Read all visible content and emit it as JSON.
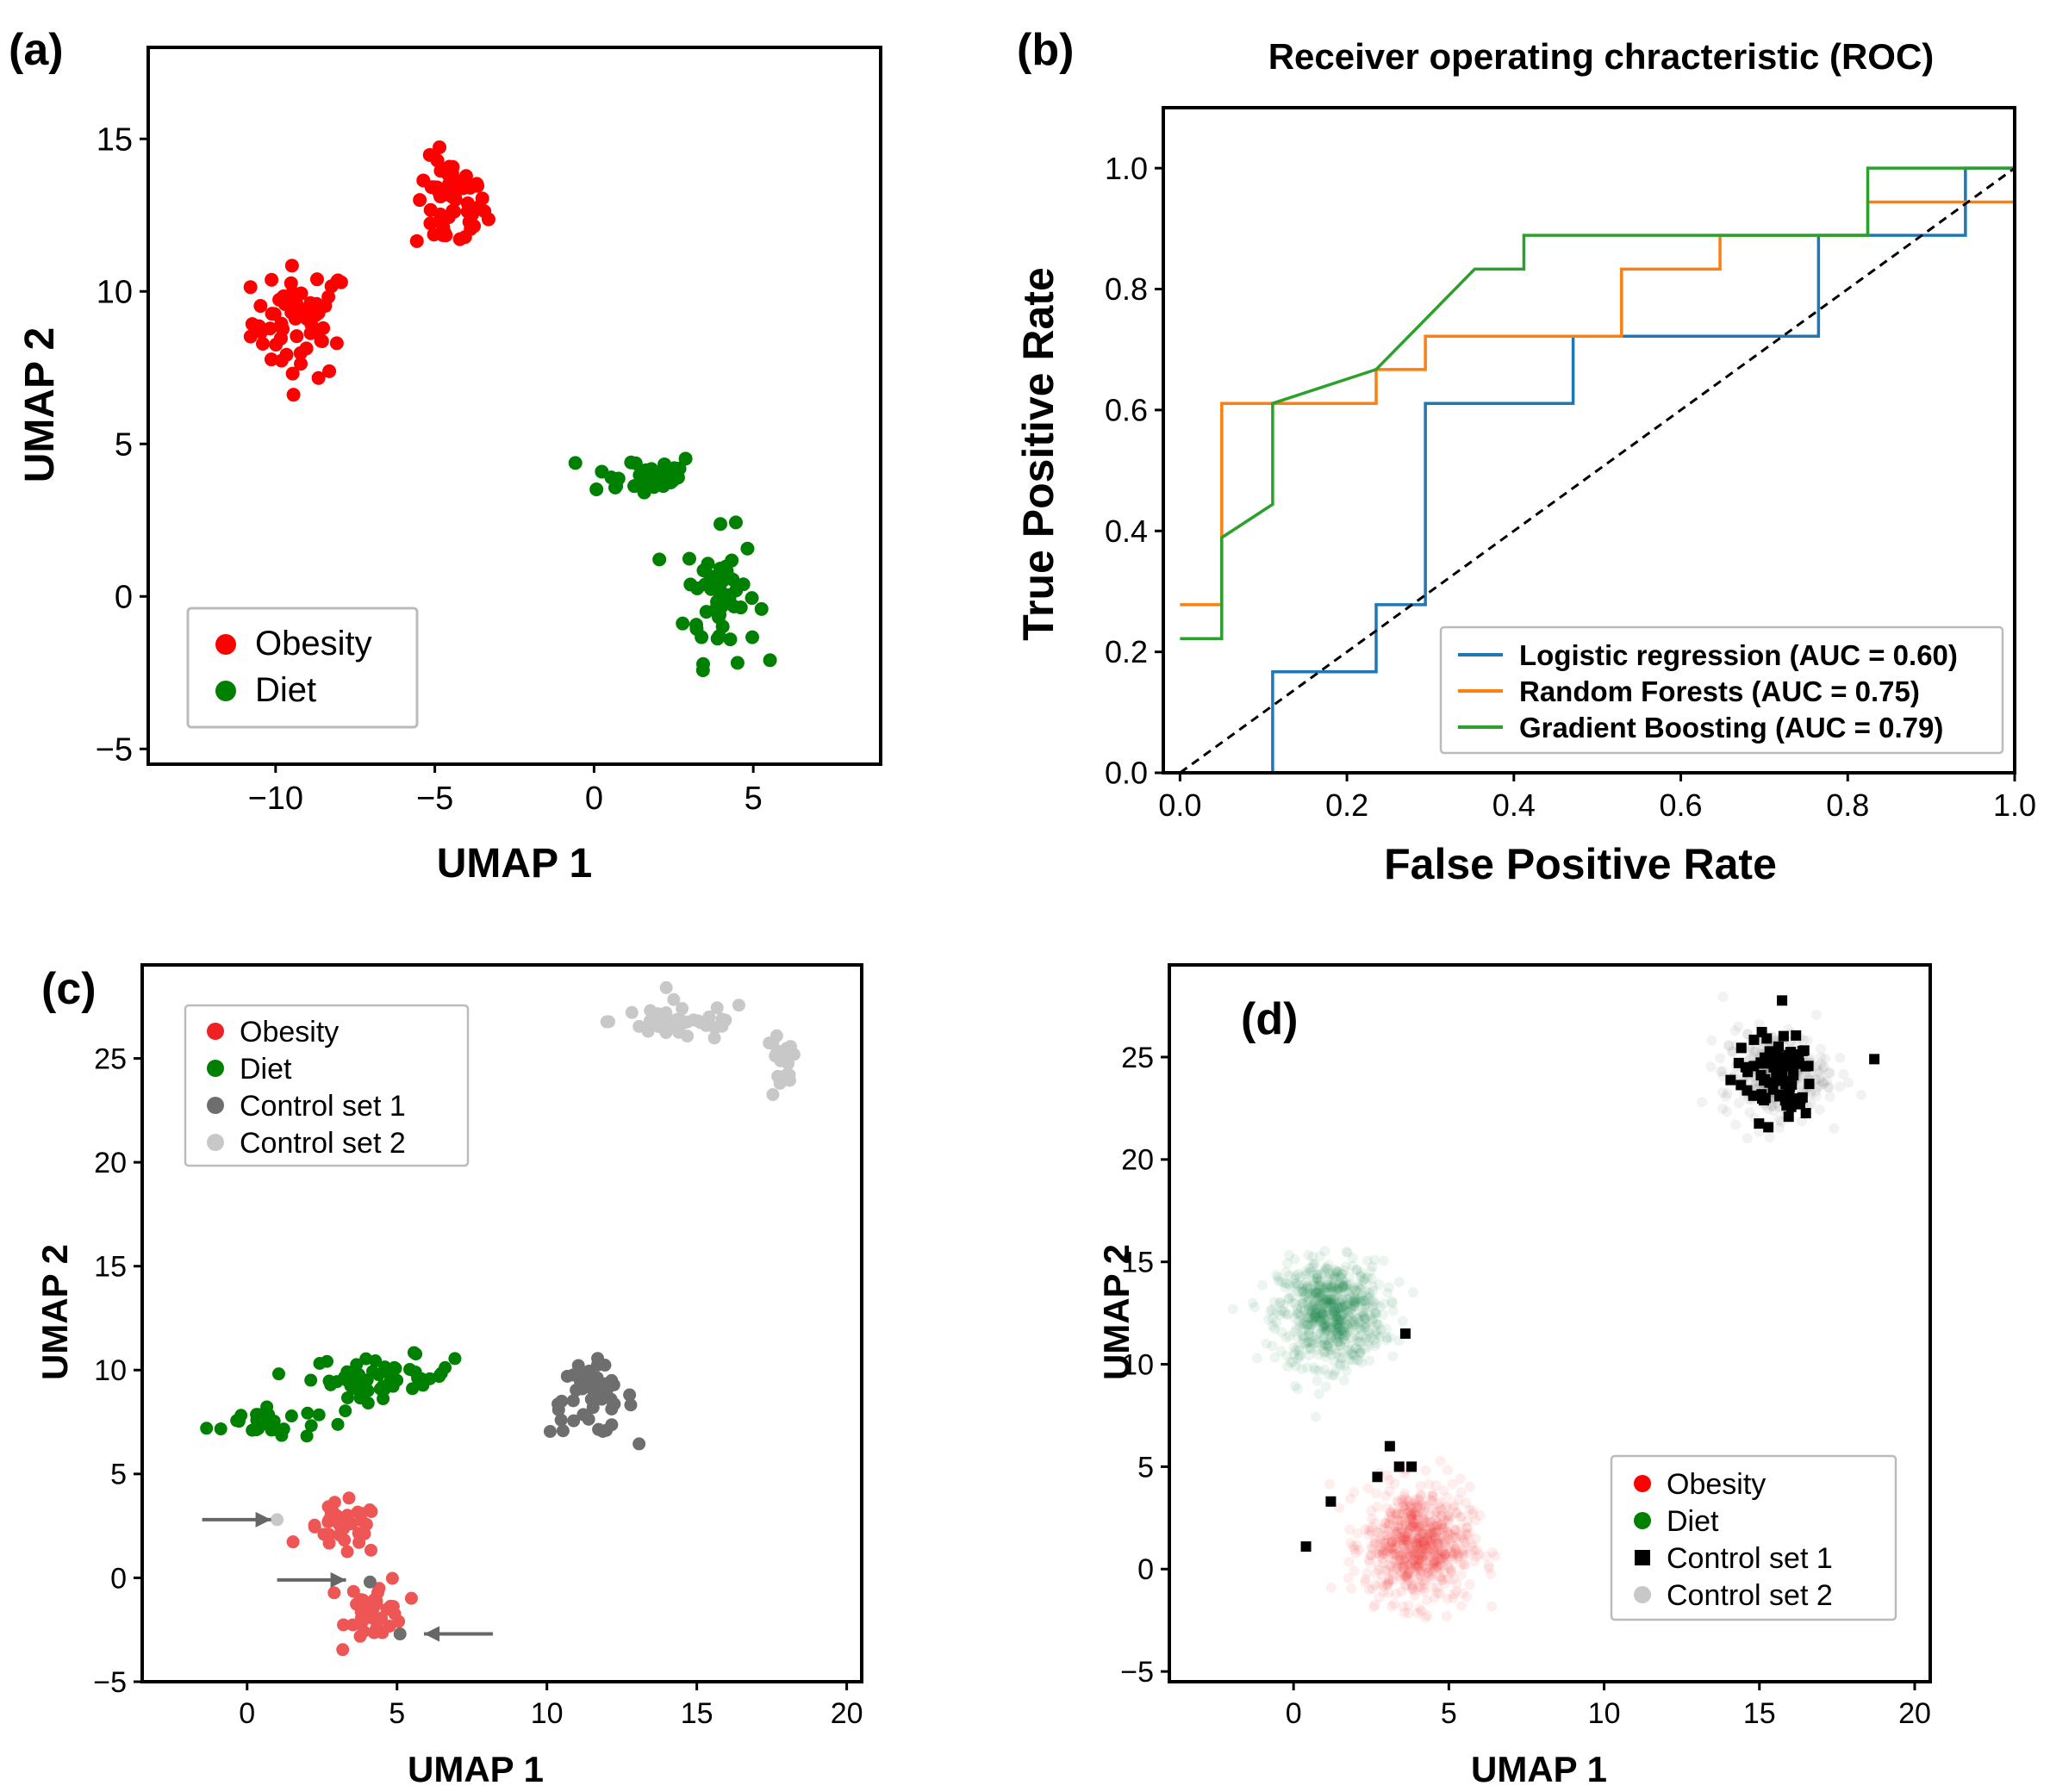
{
  "chart_data": [
    {
      "panel": "(a)",
      "type": "scatter",
      "title": "",
      "xlabel": "UMAP 1",
      "ylabel": "UMAP 2",
      "xlim": [
        -14,
        9
      ],
      "ylim": [
        -5.5,
        18
      ],
      "xticks": [
        -10,
        -5,
        0,
        5
      ],
      "yticks": [
        -5,
        0,
        5,
        10,
        15
      ],
      "xtick_labels": [
        "−10",
        "−5",
        "0",
        "5"
      ],
      "ytick_labels": [
        "−5",
        "0",
        "5",
        "10",
        "15"
      ],
      "legend": [
        {
          "label": "Obesity",
          "color": "#ff0000"
        },
        {
          "label": "Diet",
          "color": "#008000"
        }
      ],
      "series": [
        {
          "name": "Obesity",
          "color": "#ff0000",
          "clusters": [
            {
              "center": [
                -9.2,
                9.0
              ],
              "spread": [
                1.1,
                1.3
              ],
              "n": 60
            },
            {
              "center": [
                -4.5,
                12.8
              ],
              "spread": [
                0.8,
                1.1
              ],
              "n": 55
            }
          ]
        },
        {
          "name": "Diet",
          "color": "#008000",
          "clusters": [
            {
              "center": [
                1.5,
                4.0
              ],
              "spread": [
                1.3,
                0.5
              ],
              "n": 35
            },
            {
              "center": [
                4.0,
                0.0
              ],
              "spread": [
                0.8,
                1.5
              ],
              "n": 55
            }
          ]
        }
      ]
    },
    {
      "panel": "(b)",
      "type": "line",
      "title": "Receiver operating chracteristic (ROC)",
      "xlabel": "False Positive Rate",
      "ylabel": "True Positive Rate",
      "xlim": [
        -0.02,
        1.0
      ],
      "ylim": [
        0.0,
        1.1
      ],
      "xticks": [
        0.0,
        0.2,
        0.4,
        0.6,
        0.8,
        1.0
      ],
      "yticks": [
        0.0,
        0.2,
        0.4,
        0.6,
        0.8,
        1.0
      ],
      "xtick_labels": [
        "0.0",
        "0.2",
        "0.4",
        "0.6",
        "0.8",
        "1.0"
      ],
      "ytick_labels": [
        "0.0",
        "0.2",
        "0.4",
        "0.6",
        "0.8",
        "1.0"
      ],
      "series": [
        {
          "name": "Logistic regression (AUC = 0.60)",
          "color": "#1f77b4",
          "x": [
            0.0,
            0.111,
            0.111,
            0.235,
            0.235,
            0.294,
            0.294,
            0.471,
            0.471,
            0.765,
            0.765,
            0.941,
            0.941,
            1.0
          ],
          "y": [
            0.0,
            0.0,
            0.167,
            0.167,
            0.278,
            0.278,
            0.611,
            0.611,
            0.722,
            0.722,
            0.889,
            0.889,
            1.0,
            1.0
          ]
        },
        {
          "name": "Random Forests (AUC = 0.75)",
          "color": "#ff7f0e",
          "x": [
            0.0,
            0.05,
            0.05,
            0.235,
            0.235,
            0.294,
            0.294,
            0.529,
            0.529,
            0.647,
            0.647,
            0.824,
            0.824,
            1.0
          ],
          "y": [
            0.278,
            0.278,
            0.611,
            0.611,
            0.667,
            0.667,
            0.722,
            0.722,
            0.833,
            0.833,
            0.889,
            0.889,
            0.944,
            0.944
          ]
        },
        {
          "name": "Gradient Boosting (AUC = 0.79)",
          "color": "#2ca02c",
          "x": [
            0.0,
            0.05,
            0.05,
            0.111,
            0.111,
            0.235,
            0.353,
            0.412,
            0.412,
            0.824,
            0.824,
            1.0
          ],
          "y": [
            0.222,
            0.222,
            0.389,
            0.444,
            0.611,
            0.667,
            0.833,
            0.833,
            0.889,
            0.889,
            1.0,
            1.0
          ]
        },
        {
          "name": "chance",
          "color": "#000000",
          "dashed": true,
          "x": [
            0.0,
            1.0
          ],
          "y": [
            0.0,
            1.0
          ]
        }
      ],
      "legend_position": "lower-right"
    },
    {
      "panel": "(c)",
      "type": "scatter",
      "title": "",
      "xlabel": "UMAP 1",
      "ylabel": "UMAP 2",
      "xlim": [
        -3.5,
        20.5
      ],
      "ylim": [
        -5,
        29.5
      ],
      "xticks": [
        0,
        5,
        10,
        15,
        20
      ],
      "yticks": [
        -5,
        0,
        5,
        10,
        15,
        20,
        25
      ],
      "xtick_labels": [
        "0",
        "5",
        "10",
        "15",
        "20"
      ],
      "ytick_labels": [
        "−5",
        "0",
        "5",
        "10",
        "15",
        "20",
        "25"
      ],
      "legend": [
        {
          "label": "Obesity",
          "color": "#ee2222"
        },
        {
          "label": "Diet",
          "color": "#008000"
        },
        {
          "label": "Control set 1",
          "color": "#6e6e6e"
        },
        {
          "label": "Control set 2",
          "color": "#c8c8c8"
        }
      ],
      "series": [
        {
          "name": "Diet",
          "color": "#008000",
          "clusters": [
            {
              "center": [
                0.5,
                7.5
              ],
              "spread": [
                1.3,
                0.6
              ],
              "n": 30
            },
            {
              "center": [
                4.5,
                9.7
              ],
              "spread": [
                1.7,
                0.7
              ],
              "n": 55
            }
          ]
        },
        {
          "name": "Control set 1",
          "color": "#6e6e6e",
          "clusters": [
            {
              "center": [
                11.5,
                8.6
              ],
              "spread": [
                1.0,
                1.2
              ],
              "n": 50
            }
          ]
        },
        {
          "name": "Control set 2",
          "color": "#c8c8c8",
          "clusters": [
            {
              "center": [
                14.5,
                26.8
              ],
              "spread": [
                1.7,
                0.7
              ],
              "n": 45
            },
            {
              "center": [
                17.8,
                24.5
              ],
              "spread": [
                0.4,
                1.2
              ],
              "n": 20
            }
          ]
        },
        {
          "name": "Obesity",
          "color": "#ee5555",
          "clusters": [
            {
              "center": [
                3.2,
                2.3
              ],
              "spread": [
                0.9,
                0.9
              ],
              "n": 35
            },
            {
              "center": [
                4.3,
                -1.5
              ],
              "spread": [
                0.7,
                1.1
              ],
              "n": 40
            }
          ]
        }
      ],
      "outliers": [
        {
          "set": "Control set 2",
          "x": 1.0,
          "y": 2.8
        },
        {
          "set": "Control set 1",
          "x": 4.1,
          "y": -0.2
        },
        {
          "set": "Control set 1",
          "x": 5.1,
          "y": -2.7
        }
      ],
      "arrows": [
        {
          "to": [
            0.8,
            2.8
          ]
        },
        {
          "to": [
            3.3,
            -0.1
          ]
        },
        {
          "to": [
            5.9,
            -2.7
          ]
        }
      ]
    },
    {
      "panel": "(d)",
      "type": "scatter",
      "title": "",
      "xlabel": "UMAP 1",
      "ylabel": "UMAP 2",
      "xlim": [
        -4,
        20.5
      ],
      "ylim": [
        -5.5,
        29.5
      ],
      "xticks": [
        0,
        5,
        10,
        15,
        20
      ],
      "yticks": [
        -5,
        0,
        5,
        10,
        15,
        20,
        25
      ],
      "xtick_labels": [
        "0",
        "5",
        "10",
        "15",
        "20"
      ],
      "ytick_labels": [
        "−5",
        "0",
        "5",
        "10",
        "15",
        "20",
        "25"
      ],
      "legend": [
        {
          "label": "Obesity",
          "color": "#ff0000",
          "marker": "circle"
        },
        {
          "label": "Diet",
          "color": "#008000",
          "marker": "circle"
        },
        {
          "label": "Control set 1",
          "color": "#000000",
          "marker": "square"
        },
        {
          "label": "Control set 2",
          "color": "#c8c8c8",
          "marker": "circle"
        }
      ],
      "series": [
        {
          "name": "Diet",
          "color": "#0a7a45",
          "density": true,
          "clusters": [
            {
              "center": [
                1.2,
                12.5
              ],
              "spread": [
                1.2,
                1.8
              ],
              "n": 700
            }
          ]
        },
        {
          "name": "Obesity",
          "color": "#ee2020",
          "density": true,
          "clusters": [
            {
              "center": [
                4.0,
                1.2
              ],
              "spread": [
                1.2,
                2.0
              ],
              "n": 700
            }
          ]
        },
        {
          "name": "Control set 2",
          "color": "#555555",
          "density": true,
          "clusters": [
            {
              "center": [
                15.5,
                24.2
              ],
              "spread": [
                1.2,
                1.5
              ],
              "n": 350
            }
          ]
        },
        {
          "name": "Control set 1",
          "color": "#000000",
          "marker": "square",
          "clusters": [
            {
              "center": [
                15.5,
                24.0
              ],
              "spread": [
                0.9,
                1.5
              ],
              "n": 85
            }
          ],
          "points": [
            [
              18.7,
              24.9
            ],
            [
              3.6,
              11.5
            ],
            [
              3.1,
              6.0
            ],
            [
              3.4,
              5.0
            ],
            [
              3.8,
              5.0
            ],
            [
              2.7,
              4.5
            ],
            [
              1.2,
              3.3
            ],
            [
              0.4,
              1.1
            ]
          ]
        }
      ]
    }
  ]
}
